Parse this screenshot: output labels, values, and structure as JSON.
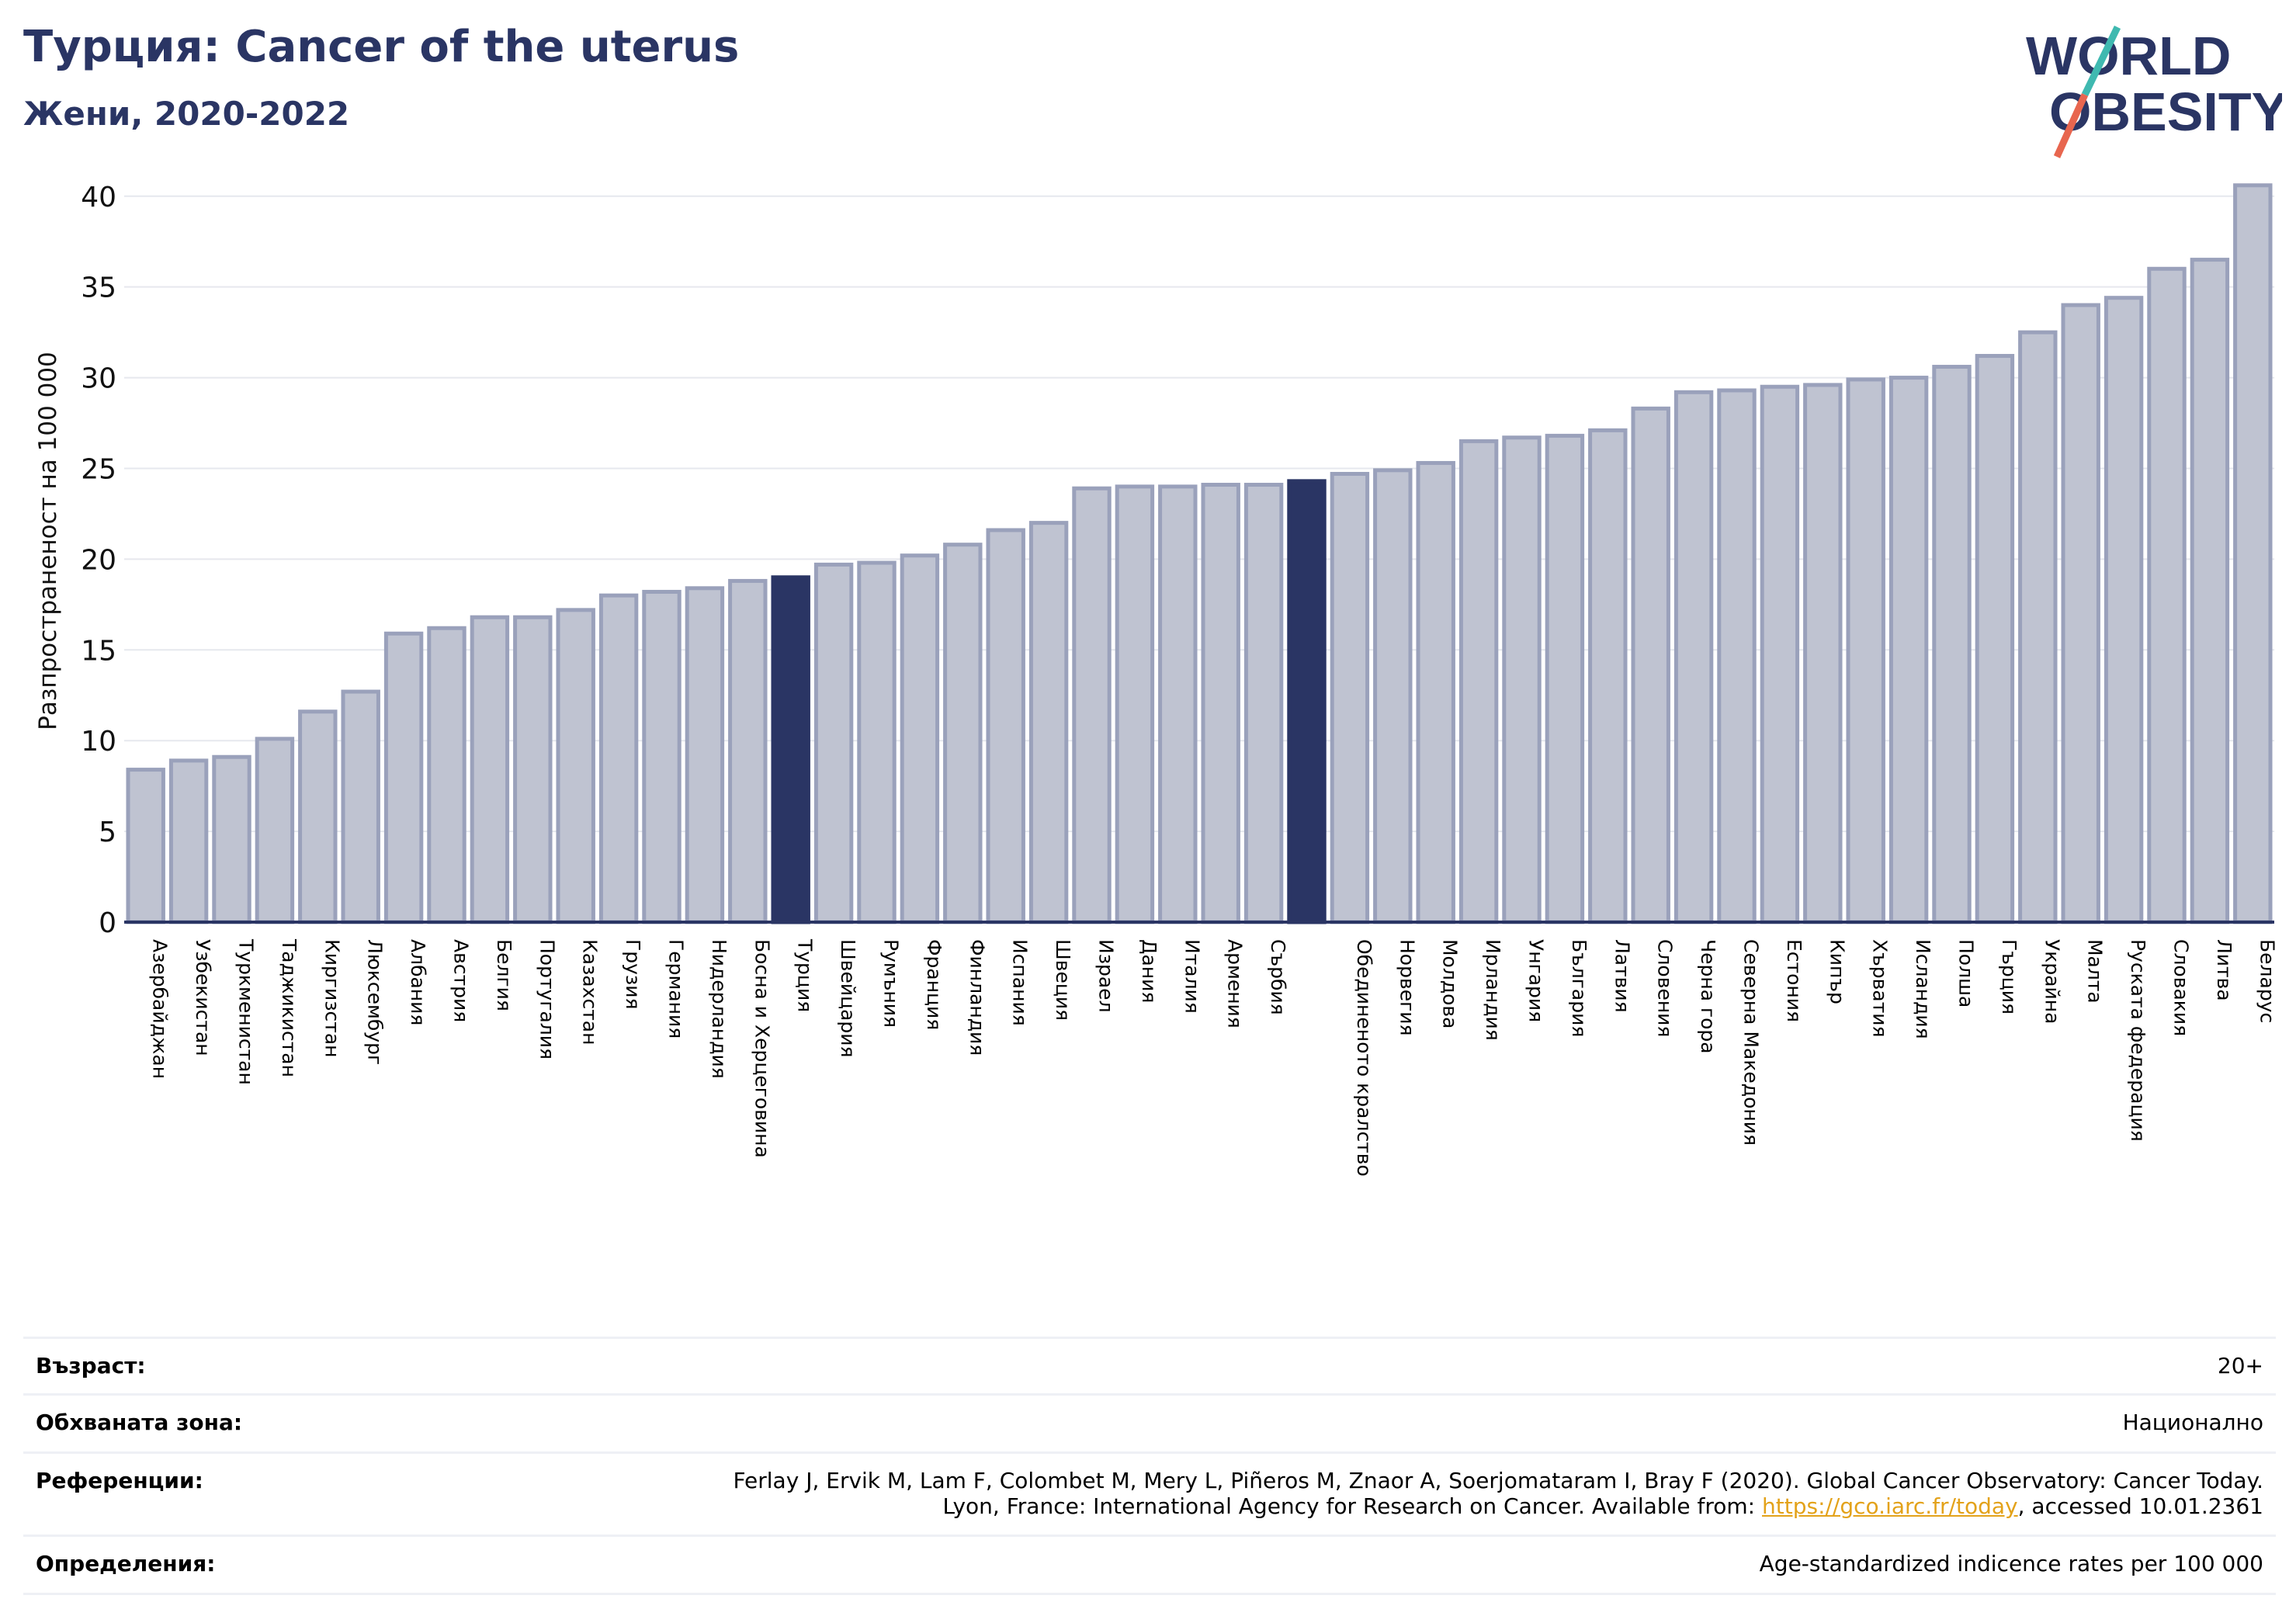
{
  "header": {
    "title": "Турция: Cancer of the uterus",
    "subtitle": "Жени, 2020-2022"
  },
  "logo": {
    "line1": "WORLD",
    "line2": "OBESITY"
  },
  "colors": {
    "bar": "#bfc3d1",
    "bar_edge": "#9aa1bb",
    "highlight": "#2a3564",
    "grid": "#e6e8ee",
    "logo_text": "#2a3564",
    "logo_teal": "#3fb9b0",
    "logo_orange": "#e8664f"
  },
  "chart_data": {
    "type": "bar",
    "ylabel": "Разпространеност  на 100 000",
    "ylim": [
      0,
      42
    ],
    "yticks": [
      0,
      5,
      10,
      15,
      20,
      25,
      30,
      35,
      40
    ],
    "grid": true,
    "categories": [
      "Азербайджан",
      "Узбекистан",
      "Туркменистан",
      "Таджикистан",
      "Киргизстан",
      "Люксембург",
      "Албания",
      "Австрия",
      "Белгия",
      "Португалия",
      "Казахстан",
      "Грузия",
      "Германия",
      "Нидерландия",
      "Босна и Херцеговина",
      "Турция",
      "Швейцария",
      "Румъния",
      "Франция",
      "Финландия",
      "Испания",
      "Швеция",
      "Израел",
      "Дания",
      "Италия",
      "Армения",
      "Сърбия",
      "",
      "Обединеното кралство",
      "Норвегия",
      "Молдова",
      "Ирландия",
      "Унгария",
      "България",
      "Латвия",
      "Словения",
      "Черна гора",
      "Северна Македония",
      "Естония",
      "Кипър",
      "Хърватия",
      "Исландия",
      "Полша",
      "Гърция",
      "Украйна",
      "Малта",
      "Руската федерация",
      "Словакия",
      "Литва",
      "Беларус"
    ],
    "values": [
      8.4,
      8.9,
      9.1,
      10.1,
      11.6,
      12.7,
      15.9,
      16.2,
      16.8,
      16.8,
      17.2,
      18.0,
      18.2,
      18.4,
      18.8,
      19.0,
      19.7,
      19.8,
      20.2,
      20.8,
      21.6,
      22.0,
      23.9,
      24.0,
      24.0,
      24.1,
      24.1,
      24.3,
      24.7,
      24.9,
      25.3,
      26.5,
      26.7,
      26.8,
      27.1,
      28.3,
      29.2,
      29.3,
      29.5,
      29.6,
      29.9,
      30.0,
      30.6,
      31.2,
      32.5,
      34.0,
      34.4,
      36.0,
      36.5,
      40.6
    ],
    "highlight_indices": [
      15,
      27
    ]
  },
  "info": {
    "rows": [
      {
        "label": "Възраст:",
        "lines": [
          "20+"
        ]
      },
      {
        "label": "Обхваната зона:",
        "lines": [
          "Национално"
        ]
      },
      {
        "label": "Референции:",
        "lines": [
          "Ferlay J, Ervik M, Lam F, Colombet M, Mery L, Piñeros M, Znaor A, Soerjomataram I, Bray F (2020). Global Cancer Observatory: Cancer Today."
        ],
        "line2_prefix": "Lyon, France: International Agency for Research on Cancer. Available from: ",
        "link": "https://gco.iarc.fr/today",
        "line2_suffix": ", accessed 10.01.2361"
      },
      {
        "label": "Определения:",
        "lines": [
          "Age-standardized indicence rates per 100 000"
        ]
      }
    ]
  }
}
